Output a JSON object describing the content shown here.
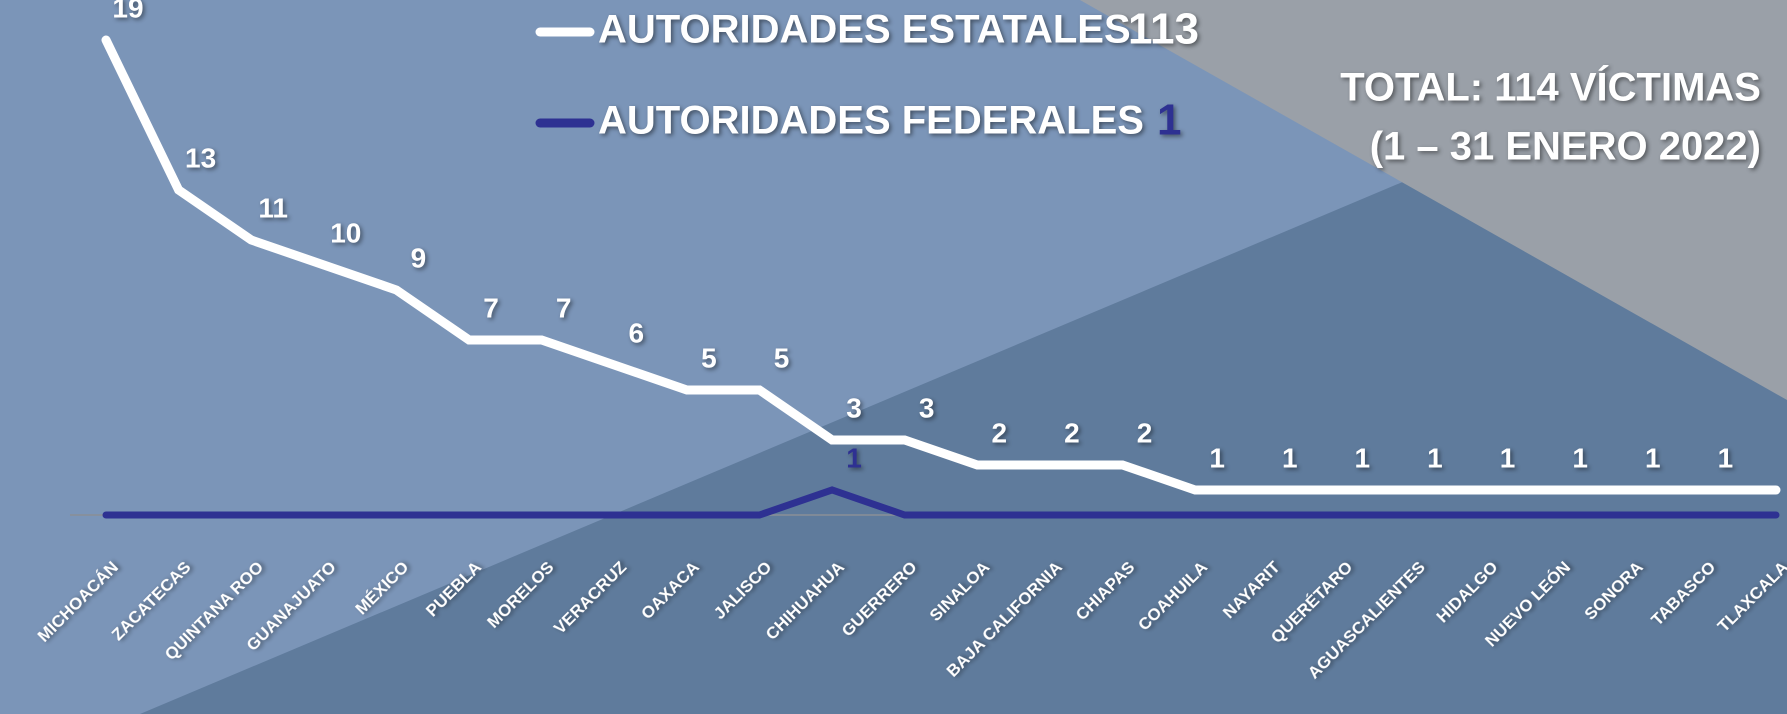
{
  "chart_data": {
    "type": "line",
    "title": "TOTAL: 114 VÍCTIMAS",
    "subtitle": "(1 – 31 ENERO 2022)",
    "categories": [
      "MICHOACÁN",
      "ZACATECAS",
      "QUINTANA ROO",
      "GUANAJUATO",
      "MÉXICO",
      "PUEBLA",
      "MORELOS",
      "VERACRUZ",
      "OAXACA",
      "JALISCO",
      "CHIHUAHUA",
      "GUERRERO",
      "SINALOA",
      "BAJA CALIFORNIA",
      "CHIAPAS",
      "COAHUILA",
      "NAYARIT",
      "QUERÉTARO",
      "AGUASCALIENTES",
      "HIDALGO",
      "NUEVO LEÓN",
      "SONORA",
      "TABASCO",
      "TLAXCALA"
    ],
    "series": [
      {
        "name": "AUTORIDADES ESTATALES",
        "total": 113,
        "color": "#ffffff",
        "values": [
          19,
          13,
          11,
          10,
          9,
          7,
          7,
          6,
          5,
          5,
          3,
          3,
          2,
          2,
          2,
          1,
          1,
          1,
          1,
          1,
          1,
          1,
          1,
          1
        ]
      },
      {
        "name": "AUTORIDADES FEDERALES",
        "total": 1,
        "color": "#2e3192",
        "values": [
          0,
          0,
          0,
          0,
          0,
          0,
          0,
          0,
          0,
          0,
          1,
          0,
          0,
          0,
          0,
          0,
          0,
          0,
          0,
          0,
          0,
          0,
          0,
          0
        ]
      }
    ],
    "ylim": [
      0,
      19
    ]
  }
}
